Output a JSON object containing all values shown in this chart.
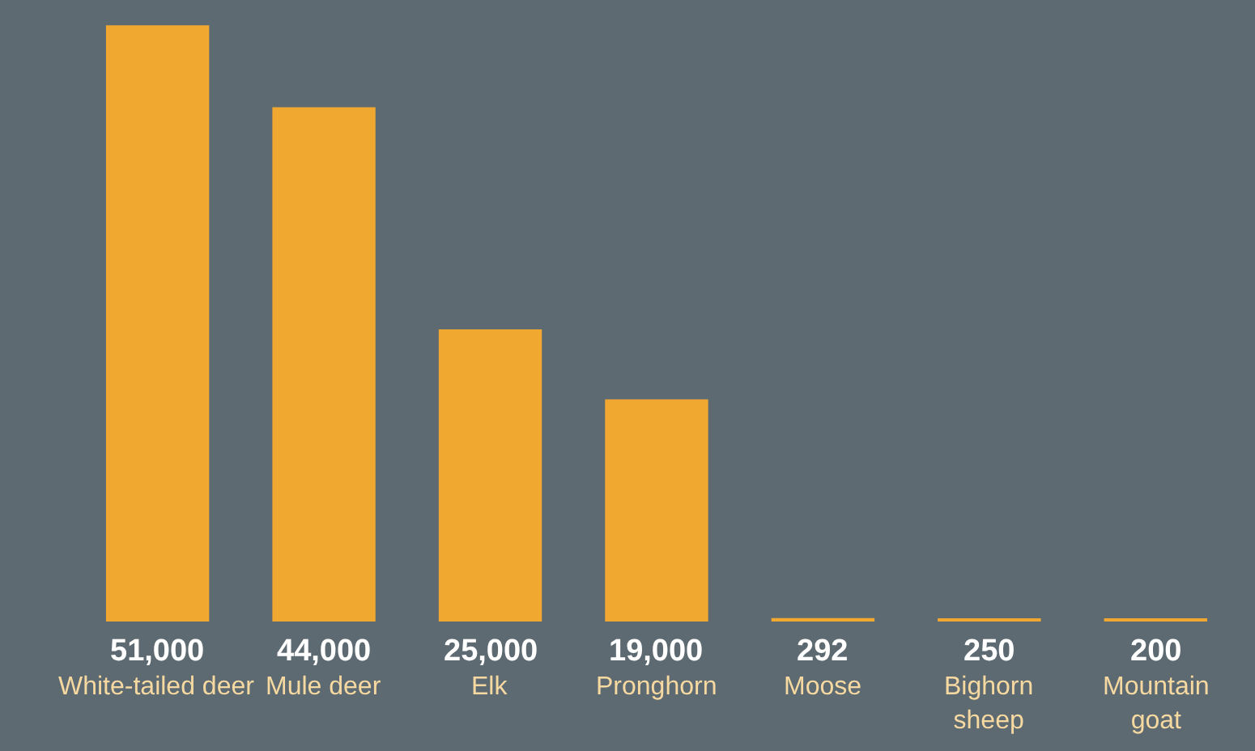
{
  "chart_data": {
    "type": "bar",
    "categories": [
      "White-tailed deer",
      "Mule deer",
      "Elk",
      "Pronghorn",
      "Moose",
      "Bighorn sheep",
      "Mountain goat"
    ],
    "values": [
      51000,
      44000,
      25000,
      19000,
      292,
      250,
      200
    ],
    "value_labels": [
      "51,000",
      "44,000",
      "25,000",
      "19,000",
      "292",
      "250",
      "200"
    ],
    "color": "#f0a830",
    "grid": false,
    "legend": false
  }
}
